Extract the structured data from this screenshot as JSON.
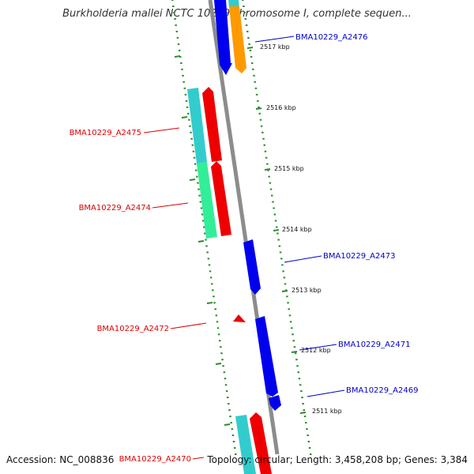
{
  "title": "Burkholderia mallei NCTC 10229 chromosome I, complete sequen...",
  "accession_text": "Accession: NC_008836",
  "topology_text": "Topology: circular; Length: 3,458,208 bp; Genes: 3,384",
  "colors": {
    "backbone": "#8c8c8c",
    "ruler": "#2e8b2e",
    "forward_label": "#0000cc",
    "reverse_label": "#dd0000",
    "cds_blue": "#0000ee",
    "cds_red": "#ee0000",
    "cds_orange": "#ff9900",
    "cds_cyan": "#33cccc",
    "cds_green": "#33ee99"
  },
  "scale": {
    "unit": "kbp",
    "ticks": [
      "2517 kbp",
      "2516 kbp",
      "2515 kbp",
      "2514 kbp",
      "2513 kbp",
      "2512 kbp",
      "2511 kbp"
    ]
  },
  "gene_labels": [
    {
      "text": "BMA10229_A2476",
      "strand": "forward"
    },
    {
      "text": "BMA10229_A2475",
      "strand": "reverse"
    },
    {
      "text": "BMA10229_A2474",
      "strand": "reverse"
    },
    {
      "text": "BMA10229_A2473",
      "strand": "forward"
    },
    {
      "text": "BMA10229_A2472",
      "strand": "reverse"
    },
    {
      "text": "BMA10229_A2471",
      "strand": "forward"
    },
    {
      "text": "BMA10229_A2469",
      "strand": "forward"
    },
    {
      "text": "BMA10229_A2470",
      "strand": "reverse"
    }
  ]
}
